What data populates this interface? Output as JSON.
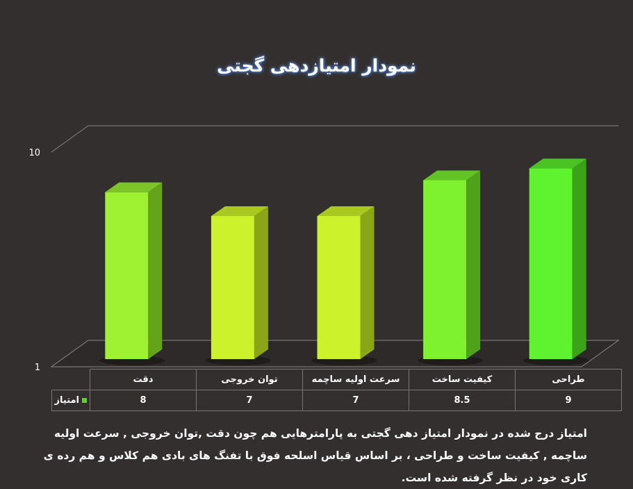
{
  "chart_data": {
    "type": "bar",
    "title": "نمودار امتیازدهی گجتی",
    "categories": [
      "دقت",
      "توان خروجی",
      "سرعت اولیه ساچمه",
      "کیفیت ساخت",
      "طراحی"
    ],
    "series": [
      {
        "name": "امتیاز",
        "values": [
          8,
          7,
          7,
          8.5,
          9
        ]
      }
    ],
    "value_labels": [
      "8",
      "7",
      "7",
      "8.5",
      "9"
    ],
    "ylim": [
      1,
      10
    ],
    "y_ticks": [
      "1",
      "10"
    ],
    "grid": false,
    "legend": "left of data table",
    "bar_colors": [
      "#9ef232",
      "#ccf22b",
      "#ccf22b",
      "#7ff22f",
      "#5ff22f"
    ],
    "bar_side_colors": [
      "#64a31a",
      "#8aa617",
      "#8aa617",
      "#4fa31a",
      "#3aa31a"
    ],
    "bar_top_colors": [
      "#7cc427",
      "#a9c822",
      "#a9c822",
      "#62c424",
      "#49c424"
    ]
  },
  "caption": "امتیاز درج شده در نمودار امتیاز دهی گجتی  به پارامترهایی هم چون دقت ,توان خروجی , سرعت اولیه ساچمه , کیفیت ساخت و طراحی ، بر اساس قیاس اسلحه فوق با تفنگ های بادی هم کلاس و هم رده ی کاری خود در نظر گرفته شده است."
}
